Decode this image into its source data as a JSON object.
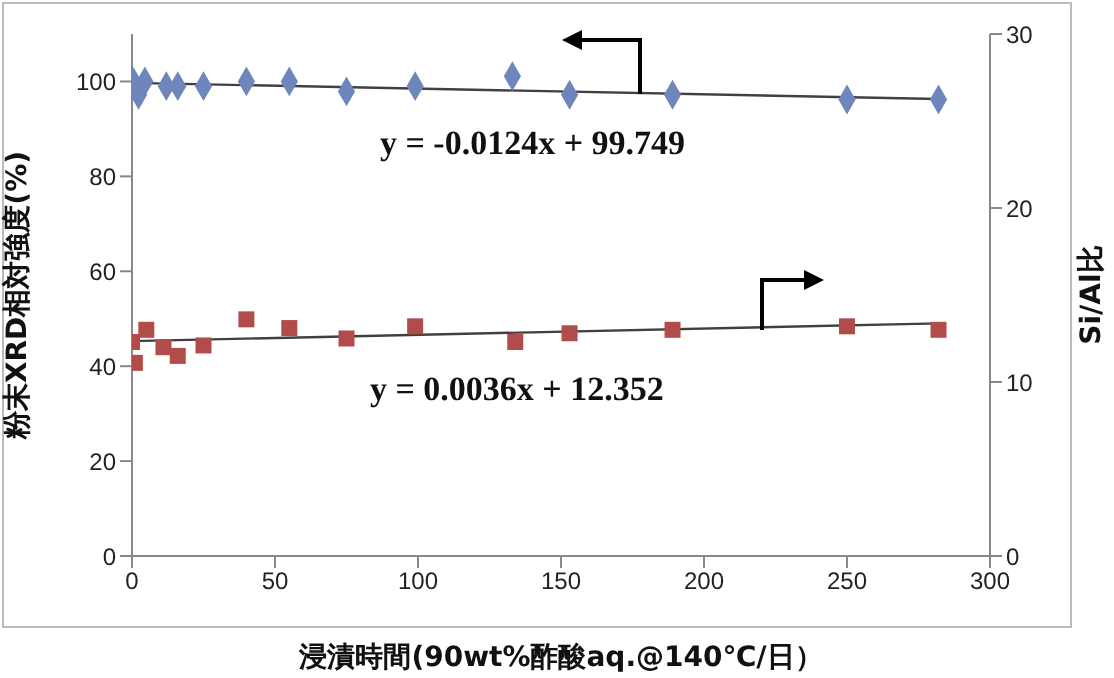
{
  "chart_data": {
    "type": "scatter",
    "xlabel": "浸漬時間(90wt%酢酸aq.@140℃/日）",
    "ylabel": "粉末XRD相対強度(%)",
    "y2label": "Si/Al比",
    "xlim": [
      0,
      300
    ],
    "xticks": [
      0,
      50,
      100,
      150,
      200,
      250,
      300
    ],
    "ylim": [
      0,
      110
    ],
    "yticks": [
      0,
      20,
      40,
      60,
      80,
      100
    ],
    "y2lim": [
      0,
      30
    ],
    "y2ticks": [
      0,
      10,
      20,
      30
    ],
    "series": [
      {
        "marker": "diamond",
        "color": "#6f86bd",
        "x": [
          0,
          2.3,
          4.5,
          12,
          16,
          25,
          40,
          55,
          75,
          99,
          133,
          153,
          189,
          250,
          282
        ],
        "values": [
          100.4,
          97.2,
          100,
          99,
          99,
          99,
          100,
          100,
          97.9,
          99,
          101.1,
          97.2,
          97.2,
          96.2,
          96.2
        ]
      },
      {
        "marker": "square",
        "color": "#b24c4a",
        "axis": "y2",
        "x": [
          0,
          1,
          5,
          11,
          16,
          25,
          40,
          55,
          75,
          99,
          134,
          153,
          189,
          250,
          282
        ],
        "values": [
          12.3,
          11.1,
          13.0,
          12.0,
          11.5,
          12.1,
          13.6,
          13.1,
          12.5,
          13.2,
          12.3,
          12.8,
          13.0,
          13.2,
          13.0
        ]
      },
      {
        "type": "line",
        "marker": "none",
        "color": "#404040",
        "x": [
          0,
          282
        ],
        "values": [
          99.7,
          96.3
        ]
      },
      {
        "type": "line",
        "marker": "none",
        "color": "#404040",
        "axis": "y2",
        "x": [
          0,
          282
        ],
        "values": [
          12.35,
          13.37
        ]
      }
    ],
    "annotations": [
      "y = -0.0124x + 99.749",
      "y = 0.0036x + 12.352"
    ]
  }
}
